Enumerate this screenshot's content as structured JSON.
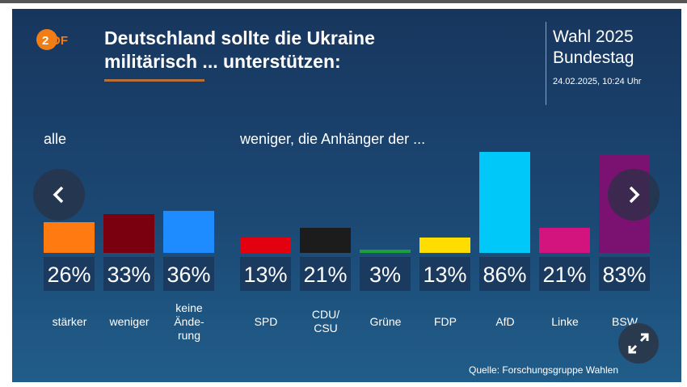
{
  "header": {
    "logo": "ZDF",
    "title_line1": "Deutschland sollte die Ukraine",
    "title_line2": "militärisch ... unterstützen:",
    "event_line1": "Wahl 2025",
    "event_line2": "Bundestag",
    "timestamp": "24.02.2025, 10:24 Uhr"
  },
  "chart_data": {
    "type": "bar",
    "title": "Deutschland sollte die Ukraine militärisch ... unterstützen:",
    "groups": [
      {
        "label": "alle",
        "categories": [
          "stärker",
          "weniger",
          "keine\nÄnde-\nrung"
        ],
        "values": [
          26,
          33,
          36
        ],
        "value_labels": [
          "26%",
          "33%",
          "36%"
        ],
        "colors": [
          "#ff7a10",
          "#7a0010",
          "#1e8cff"
        ]
      },
      {
        "label": "weniger, die Anhänger der ...",
        "categories": [
          "SPD",
          "CDU/\nCSU",
          "Grüne",
          "FDP",
          "AfD",
          "Linke",
          "BSW"
        ],
        "values": [
          13,
          21,
          3,
          13,
          86,
          21,
          83
        ],
        "value_labels": [
          "13%",
          "21%",
          "3%",
          "13%",
          "86%",
          "21%",
          "83%"
        ],
        "colors": [
          "#e3000f",
          "#1c1c1c",
          "#1aa037",
          "#ffdd00",
          "#00c8f8",
          "#d4147e",
          "#7b1170"
        ]
      }
    ],
    "ylim": [
      0,
      100
    ],
    "unit": "%"
  },
  "source": "Quelle: Forschungsgruppe Wahlen",
  "icons": {
    "prev": "chevron-left-icon",
    "next": "chevron-right-icon",
    "expand": "expand-icon"
  }
}
